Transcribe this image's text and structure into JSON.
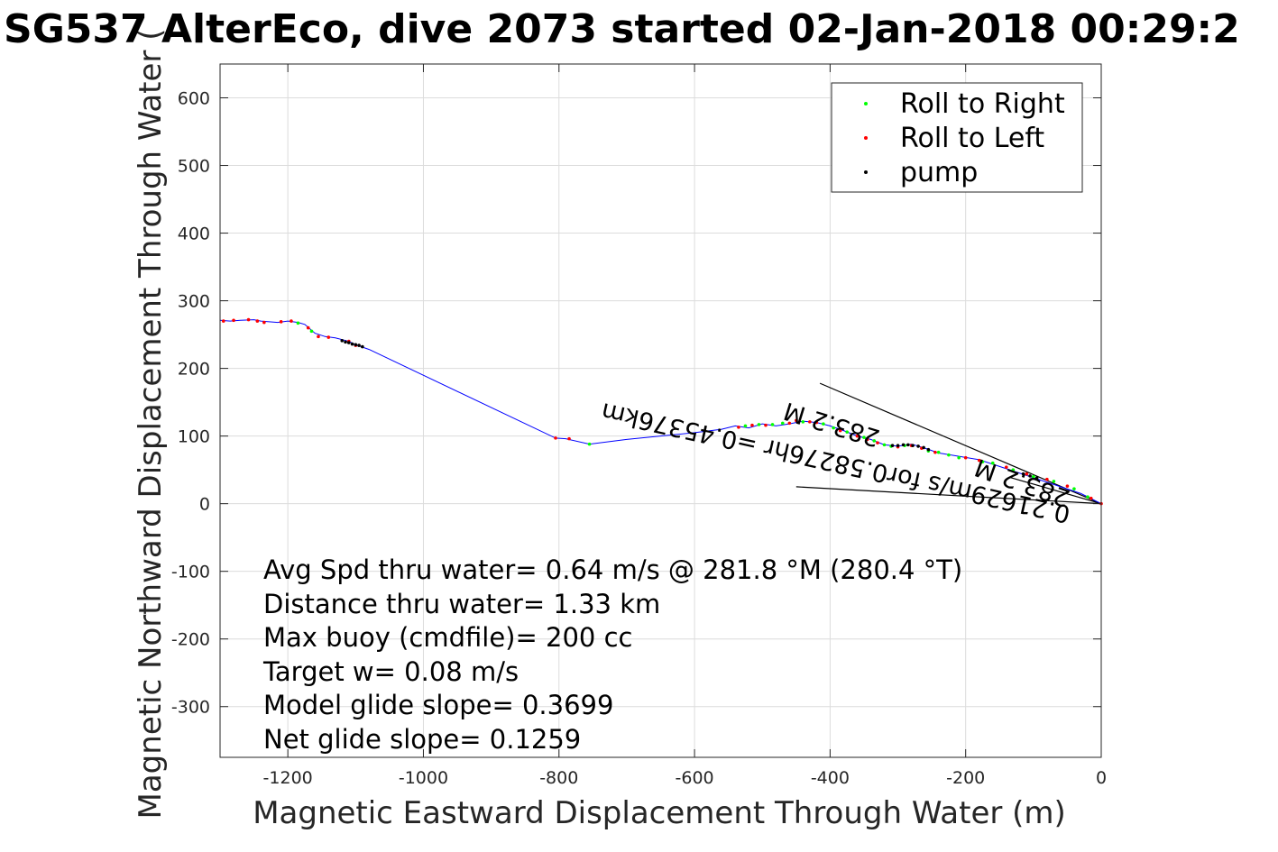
{
  "chart_data": {
    "type": "line",
    "title": "SG537 AlterEco, dive 2073 started 02-Jan-2018 00:29:2",
    "xlabel": "Magnetic Eastward Displacement Through Water (m)",
    "ylabel": "Magnetic Northward Displacement Through Water (",
    "xlim": [
      -1300,
      0
    ],
    "ylim": [
      -375,
      650
    ],
    "xticks": [
      -1200,
      -1000,
      -800,
      -600,
      -400,
      -200,
      0
    ],
    "yticks": [
      -300,
      -200,
      -100,
      0,
      100,
      200,
      300,
      400,
      500,
      600
    ],
    "xtick_labels": [
      "-1200",
      "-1000",
      "-800",
      "-600",
      "-400",
      "-200",
      "0"
    ],
    "ytick_labels": [
      "-300",
      "-200",
      "-100",
      "0",
      "100",
      "200",
      "300",
      "400",
      "500",
      "600"
    ],
    "grid": true,
    "legend_placement": "top-right",
    "legend": [
      {
        "label": "Roll to Right",
        "color": "#00ff00"
      },
      {
        "label": "Roll to Left",
        "color": "#ff0000"
      },
      {
        "label": "pump",
        "color": "#000000"
      }
    ],
    "track_color": "#0000ff",
    "track": {
      "x": [
        0,
        -30,
        -60,
        -90,
        -120,
        -150,
        -180,
        -210,
        -240,
        -260,
        -280,
        -300,
        -320,
        -340,
        -360,
        -380,
        -400,
        -420,
        -440,
        -460,
        -480,
        -500,
        -520,
        -540,
        -560,
        -600,
        -650,
        -700,
        -755,
        -790,
        -805,
        -1080,
        -1100,
        -1110,
        -1130,
        -1145,
        -1160,
        -1175,
        -1185,
        -1200,
        -1215,
        -1240,
        -1250,
        -1270,
        -1285,
        -1300
      ],
      "y": [
        0,
        15,
        25,
        35,
        45,
        55,
        65,
        70,
        75,
        82,
        88,
        85,
        87,
        95,
        100,
        108,
        115,
        120,
        122,
        118,
        115,
        118,
        112,
        115,
        110,
        105,
        100,
        95,
        88,
        96,
        97,
        228,
        235,
        240,
        245,
        247,
        252,
        265,
        268,
        270,
        268,
        270,
        272,
        271,
        270,
        271
      ]
    },
    "roll_right_points": {
      "x": [
        -20,
        -40,
        -70,
        -100,
        -130,
        -160,
        -175,
        -210,
        -225,
        -240,
        -255,
        -290,
        -310,
        -320,
        -335,
        -350,
        -375,
        -395,
        -410,
        -440,
        -470,
        -485,
        -505,
        -525,
        -755,
        -1165,
        -1185
      ],
      "y": [
        10,
        22,
        33,
        40,
        50,
        60,
        62,
        68,
        72,
        76,
        78,
        86,
        85,
        87,
        93,
        98,
        106,
        112,
        118,
        121,
        119,
        117,
        117,
        115,
        88,
        255,
        267
      ]
    },
    "roll_left_points": {
      "x": [
        0,
        -15,
        -50,
        -80,
        -110,
        -140,
        -180,
        -200,
        -245,
        -265,
        -280,
        -300,
        -330,
        -345,
        -360,
        -385,
        -420,
        -430,
        -450,
        -460,
        -495,
        -515,
        -535,
        -785,
        -805,
        -1100,
        -1110,
        -1140,
        -1155,
        -1170,
        -1195,
        -1210,
        -1235,
        -1245,
        -1258,
        -1280,
        -1295
      ],
      "y": [
        0,
        8,
        26,
        36,
        44,
        54,
        64,
        68,
        76,
        82,
        86,
        84,
        90,
        95,
        100,
        108,
        120,
        121,
        123,
        119,
        116,
        116,
        113,
        96,
        97,
        234,
        240,
        246,
        247,
        260,
        270,
        269,
        268,
        270,
        272,
        271,
        270
      ]
    },
    "pump_points": {
      "x": [
        -95,
        -105,
        -115,
        -255,
        -262,
        -270,
        -278,
        -285,
        -292,
        -300,
        -308,
        -1090,
        -1095,
        -1100,
        -1105,
        -1110,
        -1115,
        -1120
      ],
      "y": [
        38,
        41,
        44,
        80,
        83,
        85,
        86,
        87,
        87,
        86,
        86,
        232,
        234,
        235,
        236,
        238,
        239,
        241
      ]
    },
    "vector_lines": [
      {
        "x": [
          0,
          -415
        ],
        "y": [
          0,
          178
        ]
      },
      {
        "x": [
          0,
          -450
        ],
        "y": [
          0,
          25
        ]
      },
      {
        "x": [
          0,
          -135
        ],
        "y": [
          0,
          39
        ]
      }
    ],
    "vector_labels": [
      "283.2 M",
      "0.21629m/s for0.58276hr =0.45376km",
      "283.2 M"
    ],
    "annotations": [
      "Avg Spd thru water=  0.64 m/s @ 281.8 °M (280.4 °T)",
      "Distance thru water=  1.33 km",
      "Max buoy (cmdfile)= 200 cc",
      "Target w= 0.08 m/s",
      "Model glide slope= 0.3699",
      "Net glide slope= 0.1259"
    ]
  }
}
